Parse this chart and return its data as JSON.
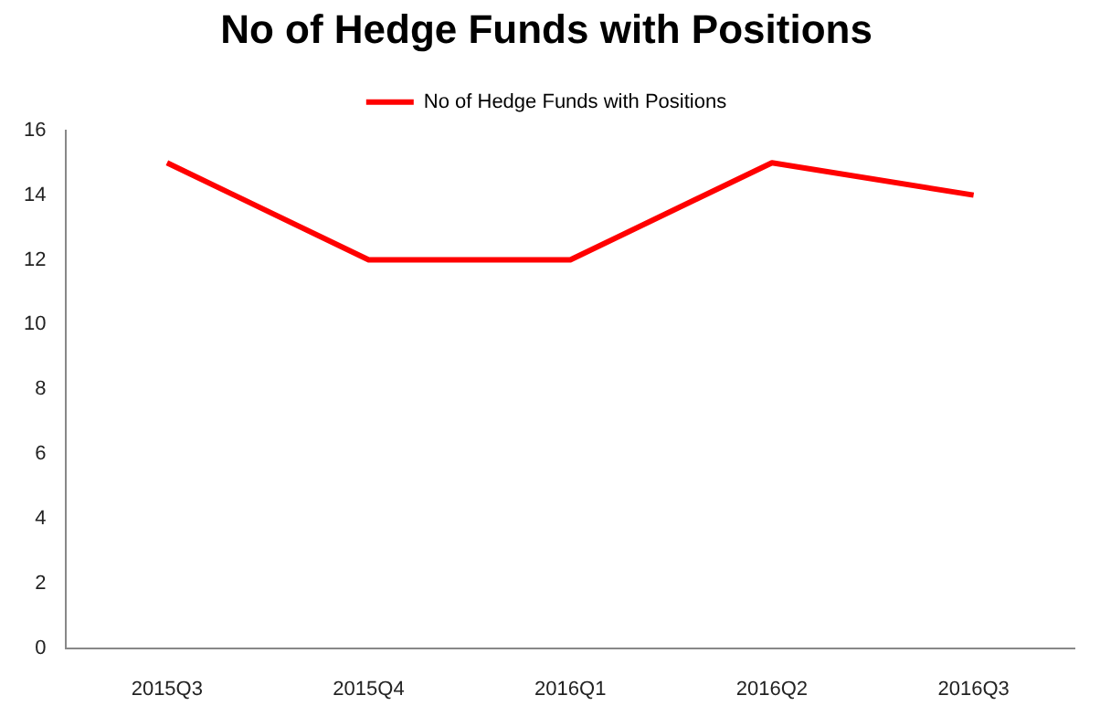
{
  "chart_data": {
    "type": "line",
    "title": "No of Hedge Funds with Positions",
    "categories": [
      "2015Q3",
      "2015Q4",
      "2016Q1",
      "2016Q2",
      "2016Q3"
    ],
    "series": [
      {
        "name": "No of Hedge Funds with Positions",
        "color": "#ff0000",
        "values": [
          15,
          12,
          12,
          15,
          14
        ]
      }
    ],
    "ylim": [
      0,
      16
    ],
    "yticks": [
      0,
      2,
      4,
      6,
      8,
      10,
      12,
      14,
      16
    ],
    "grid": false,
    "legend": "top",
    "marker": "none",
    "line_style": "solid"
  }
}
